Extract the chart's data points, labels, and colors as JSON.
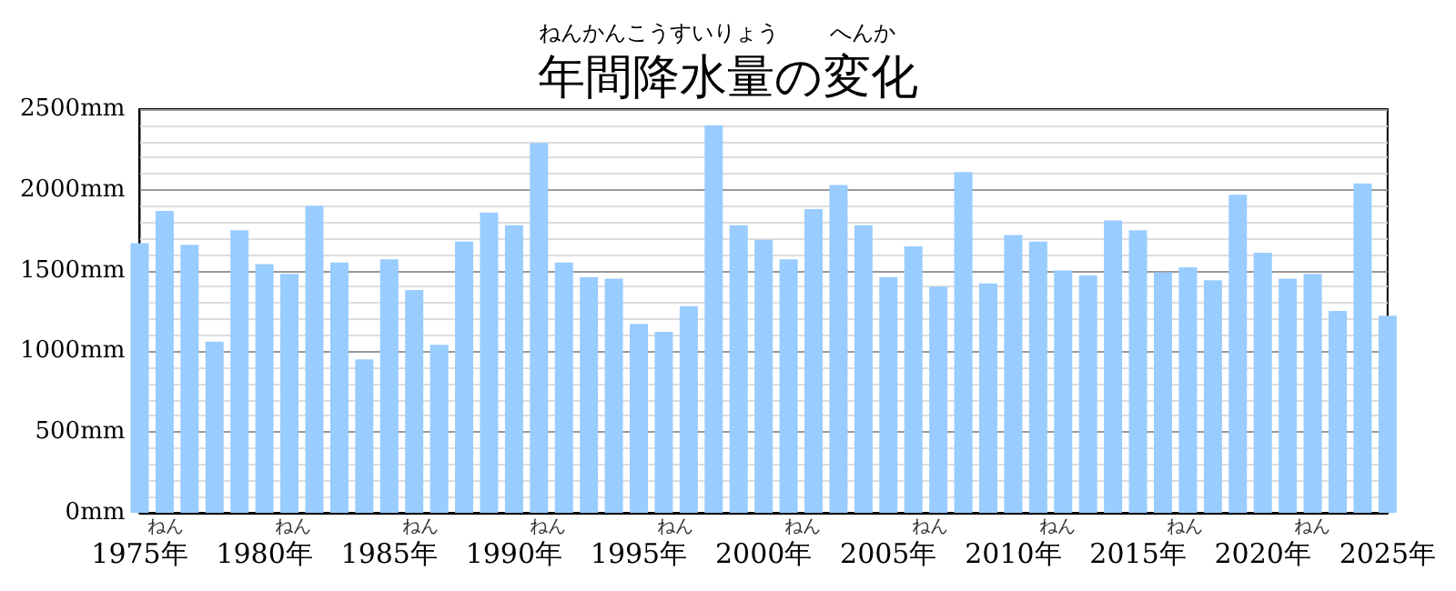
{
  "chart_data": {
    "type": "bar",
    "title": "年間降水量の変化",
    "annotations": [
      "ねんかんこうすいりょう",
      "へんか",
      "ねん"
    ],
    "x": [
      1975,
      1976,
      1977,
      1978,
      1979,
      1980,
      1981,
      1982,
      1983,
      1984,
      1985,
      1986,
      1987,
      1988,
      1989,
      1990,
      1991,
      1992,
      1993,
      1994,
      1995,
      1996,
      1997,
      1998,
      1999,
      2000,
      2001,
      2002,
      2003,
      2004,
      2005,
      2006,
      2007,
      2008,
      2009,
      2010,
      2011,
      2012,
      2013,
      2014,
      2015,
      2016,
      2017,
      2018,
      2019,
      2020,
      2021,
      2022,
      2023,
      2024,
      2025
    ],
    "values": [
      1670,
      1870,
      1660,
      1060,
      1750,
      1540,
      1480,
      1900,
      1550,
      950,
      1570,
      1380,
      1040,
      1680,
      1860,
      1780,
      2290,
      1550,
      1460,
      1450,
      1170,
      1120,
      1280,
      2400,
      1780,
      1690,
      1570,
      1880,
      2030,
      1780,
      1460,
      1650,
      1400,
      2110,
      1420,
      1720,
      1680,
      1500,
      1470,
      1810,
      1750,
      1490,
      1520,
      1440,
      1970,
      1610,
      1450,
      1480,
      1250,
      2040,
      1220
    ],
    "color": "#99ccff",
    "xlim": [
      1975,
      2025
    ],
    "xticks": [
      {
        "value": 1975,
        "label": "1975年"
      },
      {
        "value": 1980,
        "label": "1980年"
      },
      {
        "value": 1985,
        "label": "1985年"
      },
      {
        "value": 1990,
        "label": "1990年"
      },
      {
        "value": 1995,
        "label": "1995年"
      },
      {
        "value": 2000,
        "label": "2000年"
      },
      {
        "value": 2005,
        "label": "2005年"
      },
      {
        "value": 2010,
        "label": "2010年"
      },
      {
        "value": 2015,
        "label": "2015年"
      },
      {
        "value": 2020,
        "label": "2020年"
      },
      {
        "value": 2025,
        "label": "2025年"
      }
    ],
    "ylim": [
      0,
      2500
    ],
    "yticks": [
      {
        "value": 0,
        "label": "0mm"
      },
      {
        "value": 500,
        "label": "500mm"
      },
      {
        "value": 1000,
        "label": "1000mm"
      },
      {
        "value": 1500,
        "label": "1500mm"
      },
      {
        "value": 2000,
        "label": "2000mm"
      },
      {
        "value": 2500,
        "label": "2500mm"
      }
    ],
    "grid": "y"
  }
}
